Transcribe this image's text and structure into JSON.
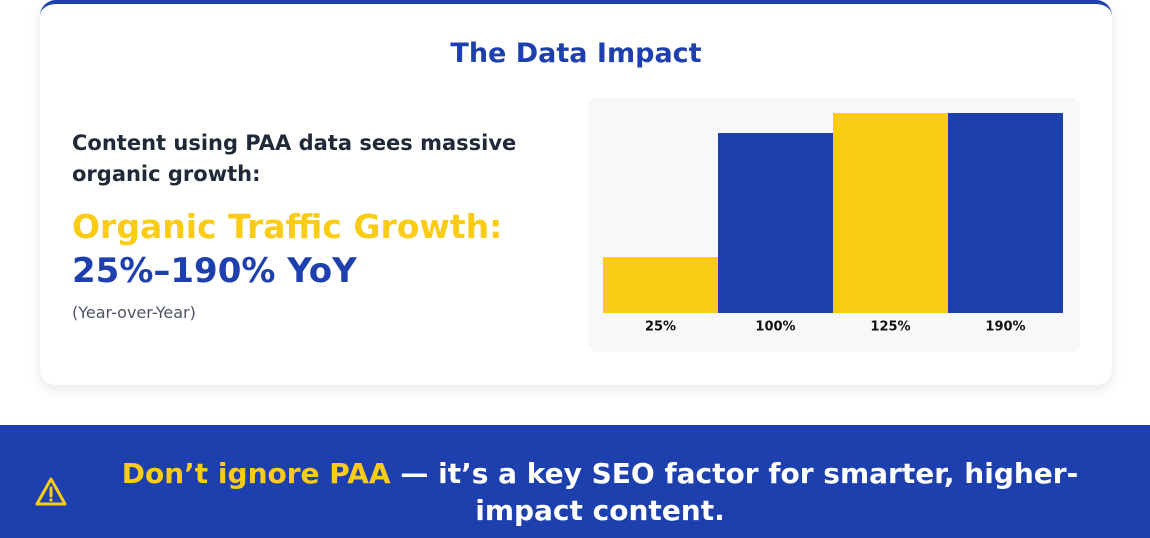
{
  "card": {
    "title": "The Data Impact",
    "intro": "Content using PAA data sees massive organic growth:",
    "highlight": "Organic Traffic Growth:",
    "range": "25%–190% YoY",
    "note": "(Year-over-Year)"
  },
  "chart_data": {
    "type": "bar",
    "categories": [
      "25%",
      "100%",
      "125%",
      "190%"
    ],
    "values": [
      28,
      90,
      100,
      100
    ],
    "colors": [
      "#facc15",
      "#1e40af",
      "#facc15",
      "#1e40af"
    ],
    "ylim": [
      0,
      100
    ]
  },
  "banner": {
    "highlight": "Don’t ignore PAA",
    "text": " — it’s a key SEO factor for smarter, higher-impact content."
  }
}
